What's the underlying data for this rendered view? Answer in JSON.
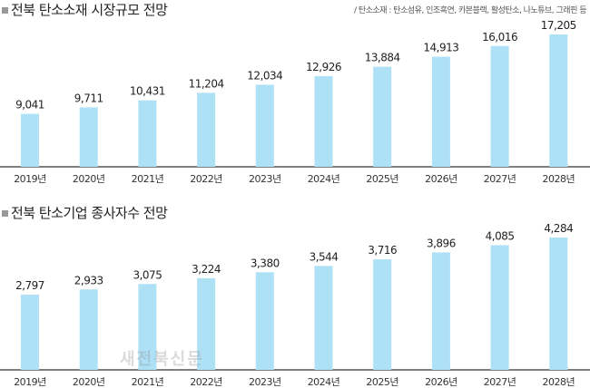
{
  "note": "/ 탄소소재 : 탄소섬유, 인조흑연, 카본블랙, 활성탄소, 나노튜브, 그래핀 등",
  "watermark": "새전북신문",
  "colors": {
    "bar": "#aee0f6",
    "axis": "#333333"
  },
  "chart_data": [
    {
      "type": "bar",
      "title": "전북 탄소소재 시장규모 전망",
      "categories": [
        "2019년",
        "2020년",
        "2021년",
        "2022년",
        "2023년",
        "2024년",
        "2025년",
        "2026년",
        "2027년",
        "2028년"
      ],
      "values": [
        9041,
        9711,
        10431,
        11204,
        12034,
        12926,
        13884,
        14913,
        16016,
        17205
      ],
      "labels": [
        "9,041",
        "9,711",
        "10,431",
        "11,204",
        "12,034",
        "12,926",
        "13,884",
        "14,913",
        "16,016",
        "17,205"
      ],
      "ylim": [
        3600,
        18000
      ]
    },
    {
      "type": "bar",
      "title": "전북 탄소기업 종사자수 전망",
      "categories": [
        "2019년",
        "2020년",
        "2021년",
        "2022년",
        "2023년",
        "2024년",
        "2025년",
        "2026년",
        "2027년",
        "2028년"
      ],
      "values": [
        2797,
        2933,
        3075,
        3224,
        3380,
        3544,
        3716,
        3896,
        4085,
        4284
      ],
      "labels": [
        "2,797",
        "2,933",
        "3,075",
        "3,224",
        "3,380",
        "3,544",
        "3,716",
        "3,896",
        "4,085",
        "4,284"
      ],
      "ylim": [
        840,
        4450
      ]
    }
  ]
}
